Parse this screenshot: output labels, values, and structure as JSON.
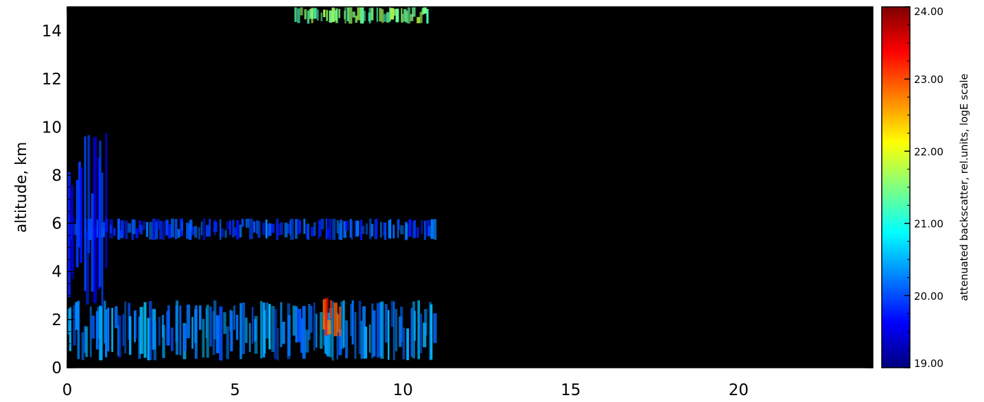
{
  "chart_data": {
    "type": "heatmap",
    "title": "",
    "xlabel": "",
    "ylabel": "altitude,  km",
    "xlim": [
      0,
      24
    ],
    "ylim": [
      0,
      15
    ],
    "x_ticks": [
      "0",
      "5",
      "10",
      "15",
      "20"
    ],
    "x_tick_values": [
      0,
      5,
      10,
      15,
      20
    ],
    "y_ticks": [
      "0",
      "2",
      "4",
      "6",
      "8",
      "10",
      "12",
      "14"
    ],
    "y_tick_values": [
      0,
      2,
      4,
      6,
      8,
      10,
      12,
      14
    ],
    "colorbar": {
      "label": "attenuated backscatter,  rel.units,  logE scale",
      "range": [
        19.0,
        24.0
      ],
      "ticks": [
        "19.00",
        "20.00",
        "21.00",
        "22.00",
        "23.00",
        "24.00"
      ],
      "tick_values": [
        19,
        20,
        21,
        22,
        23,
        24
      ],
      "colormap": "jet",
      "colors": [
        "#00007f",
        "#0000ff",
        "#0080ff",
        "#00ffff",
        "#80ff80",
        "#ffff00",
        "#ff8000",
        "#ff0000",
        "#7f0000"
      ]
    },
    "background_color": "#000000",
    "features": [
      {
        "name": "boundary layer",
        "x_range": [
          0,
          11
        ],
        "altitude_range": [
          0.3,
          2.8
        ],
        "level": 20.3
      },
      {
        "name": "mid-level layer",
        "x_range": [
          0,
          11
        ],
        "altitude_range": [
          5.3,
          6.2
        ],
        "level": 20.0
      },
      {
        "name": "upper cloud",
        "x_range": [
          6.8,
          10.8
        ],
        "altitude_range": [
          14.3,
          15
        ],
        "level": 21.5
      },
      {
        "name": "strong aerosol plume",
        "x_range": [
          7.6,
          8.2
        ],
        "altitude_range": [
          1.3,
          2.9
        ],
        "level": 23.0
      },
      {
        "name": "diffuse haze",
        "x_range": [
          0,
          1.2
        ],
        "altitude_range": [
          2.5,
          9.8
        ],
        "level": 19.7
      }
    ]
  }
}
